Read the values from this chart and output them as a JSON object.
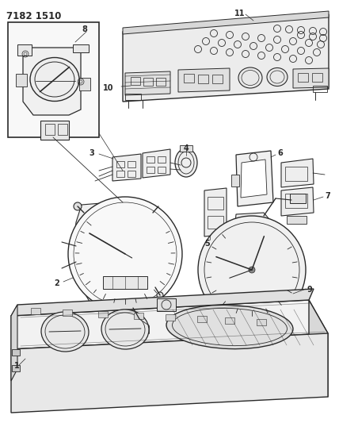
{
  "title": "7182 1510",
  "bg_color": "#ffffff",
  "lc": "#2a2a2a",
  "fig_width": 4.28,
  "fig_height": 5.33,
  "dpi": 100
}
